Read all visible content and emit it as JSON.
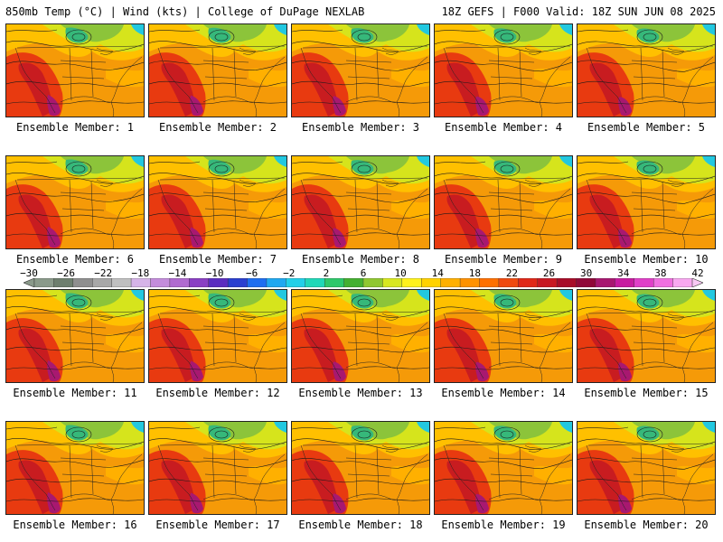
{
  "header": {
    "left": "850mb Temp (°C) | Wind (kts) | College of DuPage NEXLAB",
    "right": "18Z GEFS | F000 Valid: 18Z SUN JUN 08 2025"
  },
  "members": [
    "Ensemble Member: 1",
    "Ensemble Member: 2",
    "Ensemble Member: 3",
    "Ensemble Member: 4",
    "Ensemble Member: 5",
    "Ensemble Member: 6",
    "Ensemble Member: 7",
    "Ensemble Member: 8",
    "Ensemble Member: 9",
    "Ensemble Member: 10",
    "Ensemble Member: 11",
    "Ensemble Member: 12",
    "Ensemble Member: 13",
    "Ensemble Member: 14",
    "Ensemble Member: 15",
    "Ensemble Member: 16",
    "Ensemble Member: 17",
    "Ensemble Member: 18",
    "Ensemble Member: 19",
    "Ensemble Member: 20"
  ],
  "colorbar": {
    "ticks": [
      "−30",
      "−26",
      "−22",
      "−18",
      "−14",
      "−10",
      "−6",
      "−2",
      "2",
      "6",
      "10",
      "14",
      "18",
      "22",
      "26",
      "30",
      "34",
      "38",
      "42"
    ],
    "colors": [
      "#8a9a8a",
      "#6e7f6e",
      "#8f8f8f",
      "#a8a8a8",
      "#c0c0c0",
      "#d6b4e8",
      "#c48ddc",
      "#b06ad0",
      "#8a3fc4",
      "#5b2cc0",
      "#2a3fd0",
      "#1e6ef0",
      "#20a8f0",
      "#22d0e8",
      "#20d8b8",
      "#2ec86a",
      "#44b030",
      "#90c830",
      "#d8e820",
      "#fff21c",
      "#ffd200",
      "#ffb000",
      "#ff9200",
      "#ff7000",
      "#f04a10",
      "#e02818",
      "#c81822",
      "#a80c28",
      "#900838",
      "#a81870",
      "#c81ca0",
      "#e040c8",
      "#f070e0",
      "#f8a8f0"
    ]
  }
}
